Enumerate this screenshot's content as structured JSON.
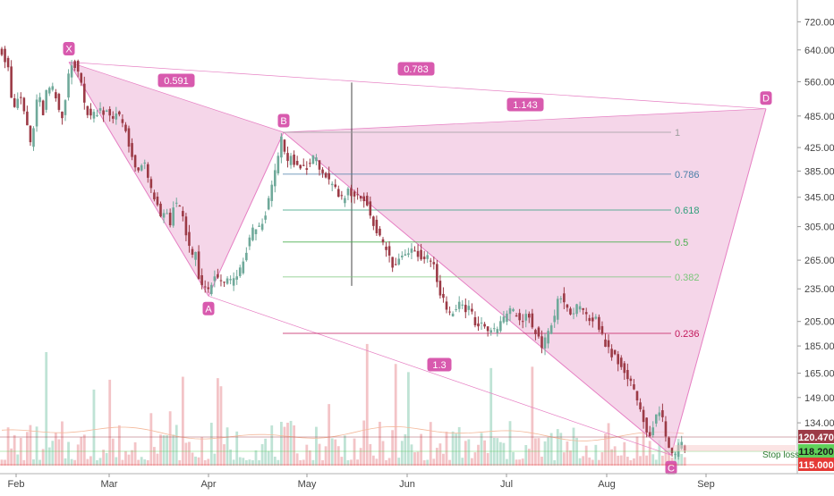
{
  "chart_data": {
    "type": "candlestick",
    "colors": {
      "up": "#6fa99a",
      "down": "#9c3a46",
      "volume_up": "#bfe3d5",
      "volume_down": "#f3c4c7",
      "pattern_fill": "#f1c8e2",
      "pattern_line": "#e67fc3",
      "label_bg": "#d85aae",
      "price_tag_current": "#9c3a46",
      "price_tag_stop": "#5fd15a",
      "price_tag_low": "#e53935",
      "stop_loss_text": "#2e7d32"
    },
    "y_axis": {
      "scale": "log",
      "range": [
        112,
        780
      ],
      "ticks": [
        "720.000",
        "640.000",
        "560.000",
        "485.000",
        "425.000",
        "385.000",
        "345.000",
        "305.000",
        "265.000",
        "235.000",
        "205.000",
        "185.000",
        "165.000",
        "149.000",
        "134.000"
      ]
    },
    "x_axis": {
      "labels": [
        "Feb",
        "Mar",
        "Apr",
        "May",
        "Jun",
        "Jul",
        "Aug",
        "Sep"
      ]
    },
    "price_tags": [
      {
        "value": "120.470",
        "kind": "current"
      },
      {
        "value": "118.200",
        "kind": "stop"
      },
      {
        "value": "115.000",
        "kind": "low"
      }
    ],
    "stop_loss_label": "Stop loss",
    "pattern_points": [
      {
        "label": "X",
        "price": 608
      },
      {
        "label": "A",
        "price": 228
      },
      {
        "label": "B",
        "price": 453
      },
      {
        "label": "C",
        "price": 117
      },
      {
        "label": "D",
        "price": 500
      }
    ],
    "pattern_ratios": [
      "0.591",
      "0.783",
      "1.143",
      "1.3"
    ],
    "fib_levels": [
      {
        "label": "1",
        "price": 453,
        "color": "#9e9e9e"
      },
      {
        "label": "0.786",
        "price": 380,
        "color": "#4a7fa8"
      },
      {
        "label": "0.618",
        "price": 327,
        "color": "#2e9e7a"
      },
      {
        "label": "0.5",
        "price": 286,
        "color": "#4caf50"
      },
      {
        "label": "0.382",
        "price": 247,
        "color": "#7bc67b"
      },
      {
        "label": "0.236",
        "price": 195,
        "color": "#c2185b"
      }
    ],
    "price_path": [
      [
        0,
        650
      ],
      [
        4,
        625
      ],
      [
        9,
        600
      ],
      [
        13,
        520
      ],
      [
        17,
        490
      ],
      [
        21,
        535
      ],
      [
        25,
        515
      ],
      [
        29,
        470
      ],
      [
        32,
        460
      ],
      [
        35,
        420
      ],
      [
        40,
        510
      ],
      [
        45,
        520
      ],
      [
        48,
        490
      ],
      [
        52,
        540
      ],
      [
        58,
        545
      ],
      [
        63,
        520
      ],
      [
        68,
        470
      ],
      [
        72,
        500
      ],
      [
        76,
        575
      ],
      [
        80,
        608
      ],
      [
        85,
        600
      ],
      [
        89,
        575
      ],
      [
        93,
        520
      ],
      [
        97,
        495
      ],
      [
        101,
        485
      ],
      [
        106,
        490
      ],
      [
        111,
        500
      ],
      [
        116,
        495
      ],
      [
        121,
        500
      ],
      [
        126,
        475
      ],
      [
        131,
        490
      ],
      [
        136,
        475
      ],
      [
        140,
        460
      ],
      [
        145,
        420
      ],
      [
        150,
        400
      ],
      [
        155,
        385
      ],
      [
        160,
        400
      ],
      [
        165,
        380
      ],
      [
        170,
        345
      ],
      [
        175,
        335
      ],
      [
        180,
        315
      ],
      [
        185,
        330
      ],
      [
        190,
        310
      ],
      [
        195,
        340
      ],
      [
        200,
        330
      ],
      [
        205,
        315
      ],
      [
        210,
        285
      ],
      [
        214,
        265
      ],
      [
        218,
        275
      ],
      [
        222,
        245
      ],
      [
        226,
        240
      ],
      [
        231,
        232
      ],
      [
        235,
        235
      ],
      [
        240,
        250
      ],
      [
        245,
        242
      ],
      [
        250,
        240
      ],
      [
        255,
        245
      ],
      [
        260,
        240
      ],
      [
        265,
        250
      ],
      [
        270,
        255
      ],
      [
        275,
        275
      ],
      [
        280,
        295
      ],
      [
        285,
        305
      ],
      [
        290,
        302
      ],
      [
        294,
        315
      ],
      [
        298,
        330
      ],
      [
        302,
        345
      ],
      [
        306,
        380
      ],
      [
        310,
        400
      ],
      [
        314,
        440
      ],
      [
        318,
        420
      ],
      [
        322,
        395
      ],
      [
        326,
        410
      ],
      [
        330,
        395
      ],
      [
        335,
        390
      ],
      [
        340,
        392
      ],
      [
        345,
        395
      ],
      [
        350,
        405
      ],
      [
        355,
        400
      ],
      [
        360,
        385
      ],
      [
        365,
        375
      ],
      [
        370,
        360
      ],
      [
        375,
        355
      ],
      [
        380,
        340
      ],
      [
        385,
        345
      ],
      [
        390,
        355
      ],
      [
        395,
        350
      ],
      [
        400,
        345
      ],
      [
        405,
        345
      ],
      [
        410,
        335
      ],
      [
        415,
        320
      ],
      [
        420,
        300
      ],
      [
        425,
        290
      ],
      [
        430,
        280
      ],
      [
        435,
        268
      ],
      [
        440,
        255
      ],
      [
        445,
        265
      ],
      [
        450,
        270
      ],
      [
        455,
        275
      ],
      [
        460,
        280
      ],
      [
        465,
        275
      ],
      [
        470,
        270
      ],
      [
        475,
        268
      ],
      [
        480,
        270
      ],
      [
        485,
        260
      ],
      [
        490,
        235
      ],
      [
        495,
        225
      ],
      [
        500,
        215
      ],
      [
        505,
        210
      ],
      [
        510,
        220
      ],
      [
        515,
        222
      ],
      [
        520,
        215
      ],
      [
        525,
        218
      ],
      [
        530,
        205
      ],
      [
        535,
        200
      ],
      [
        540,
        205
      ],
      [
        545,
        198
      ],
      [
        550,
        195
      ],
      [
        555,
        198
      ],
      [
        560,
        205
      ],
      [
        565,
        210
      ],
      [
        570,
        215
      ],
      [
        575,
        212
      ],
      [
        580,
        208
      ],
      [
        585,
        205
      ],
      [
        590,
        212
      ],
      [
        595,
        200
      ],
      [
        600,
        195
      ],
      [
        605,
        185
      ],
      [
        610,
        190
      ],
      [
        615,
        200
      ],
      [
        620,
        210
      ],
      [
        625,
        230
      ],
      [
        630,
        222
      ],
      [
        635,
        215
      ],
      [
        640,
        212
      ],
      [
        645,
        218
      ],
      [
        650,
        213
      ],
      [
        655,
        210
      ],
      [
        660,
        205
      ],
      [
        665,
        210
      ],
      [
        670,
        198
      ],
      [
        675,
        190
      ],
      [
        680,
        182
      ],
      [
        685,
        178
      ],
      [
        690,
        175
      ],
      [
        695,
        170
      ],
      [
        700,
        162
      ],
      [
        705,
        158
      ],
      [
        710,
        150
      ],
      [
        715,
        140
      ],
      [
        720,
        135
      ],
      [
        725,
        127
      ],
      [
        730,
        132
      ],
      [
        735,
        140
      ],
      [
        740,
        138
      ],
      [
        745,
        125
      ],
      [
        750,
        120
      ],
      [
        755,
        117
      ],
      [
        760,
        122
      ],
      [
        765,
        121
      ],
      [
        768,
        120.5
      ]
    ]
  }
}
